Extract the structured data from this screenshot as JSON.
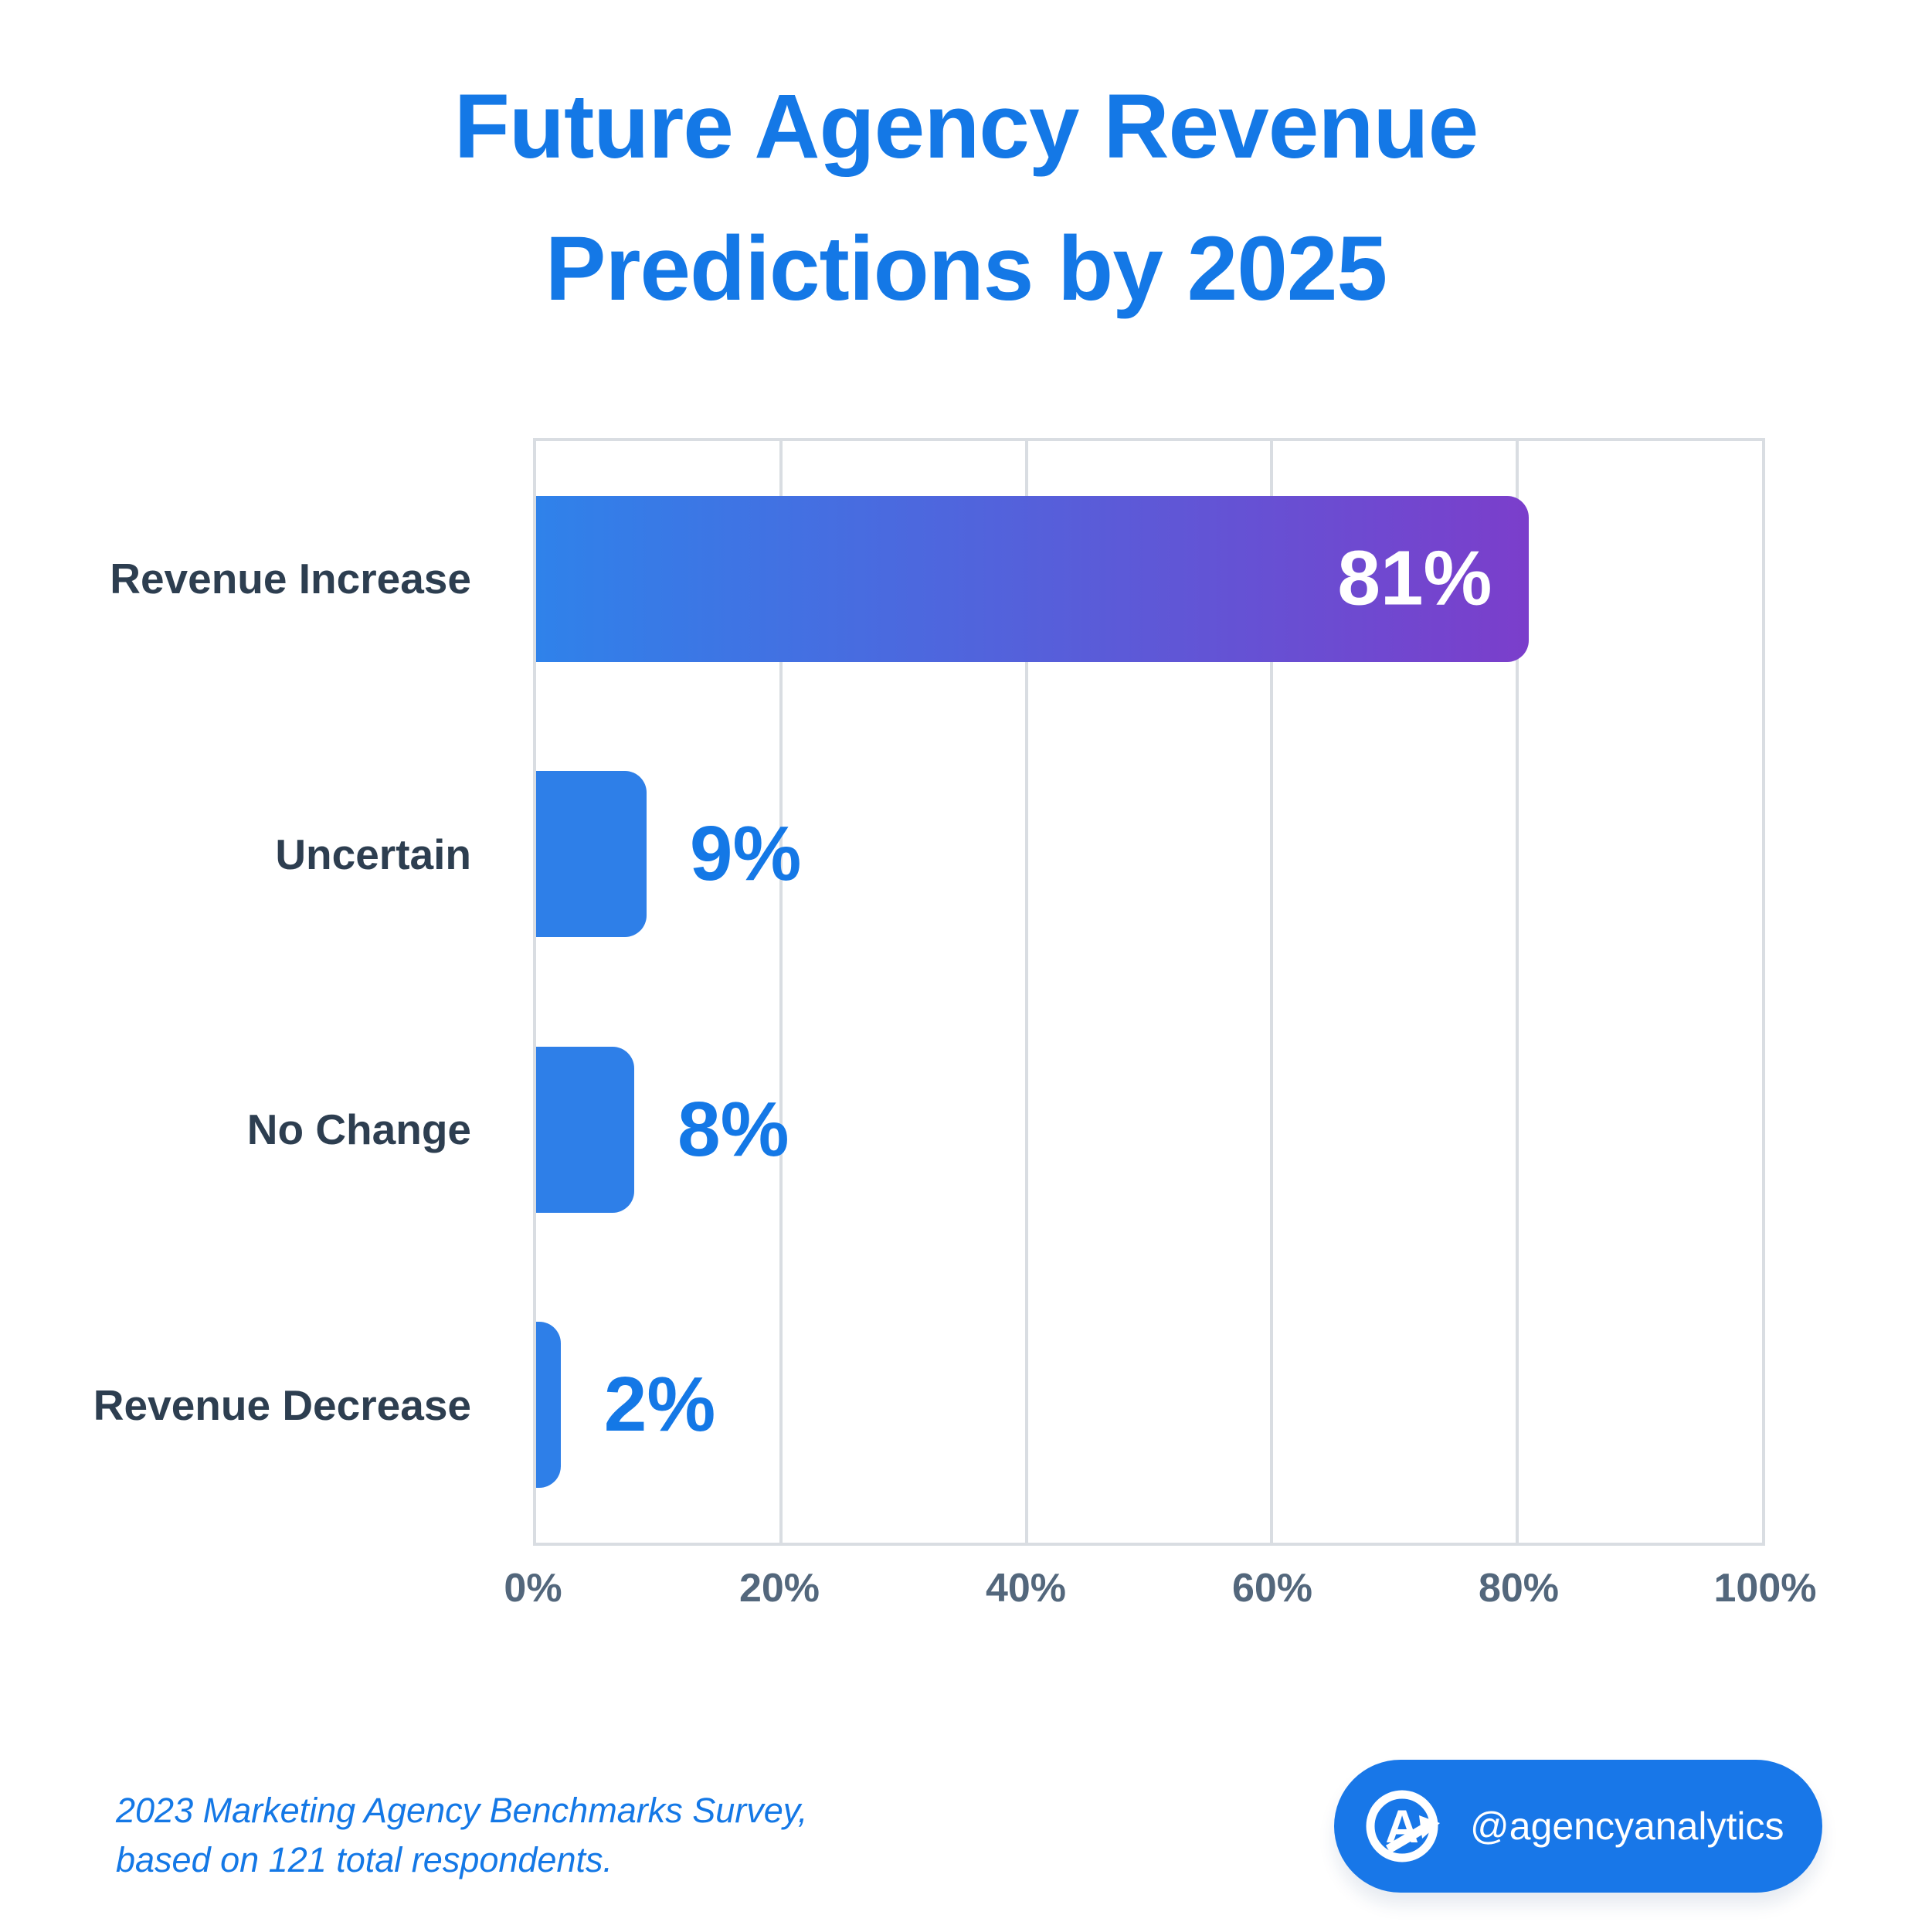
{
  "title": {
    "line1": "Future Agency Revenue",
    "line2": "Predictions by 2025"
  },
  "chart_data": {
    "type": "bar",
    "orientation": "horizontal",
    "title": "Future Agency Revenue Predictions by 2025",
    "categories": [
      "Revenue Increase",
      "Uncertain",
      "No Change",
      "Revenue Decrease"
    ],
    "values": [
      81,
      9,
      8,
      2
    ],
    "value_labels": [
      "81%",
      "9%",
      "8%",
      "2%"
    ],
    "label_inside": [
      true,
      false,
      false,
      false
    ],
    "x_ticks": [
      "0%",
      "20%",
      "40%",
      "60%",
      "80%",
      "100%"
    ],
    "xlim": [
      0,
      100
    ],
    "xlabel": "",
    "ylabel": "",
    "grid": true,
    "legend": false
  },
  "footer": {
    "source_line1": "2023 Marketing Agency Benchmarks Survey,",
    "source_line2": "based on 121 total respondents."
  },
  "badge": {
    "handle": "@agencyanalytics",
    "logo": "agencyanalytics-logo"
  },
  "colors": {
    "accent_blue": "#1478E6",
    "bar_blue": "#2E7FE8",
    "bar_gradient_start": "#2F82EA",
    "bar_gradient_end": "#7B3ECB",
    "value_inside": "#FFFFFF",
    "category_label": "#2D3E50",
    "tick_label": "#53677C",
    "grid": "#D9DDE2",
    "badge_bg": "#1877E8"
  }
}
